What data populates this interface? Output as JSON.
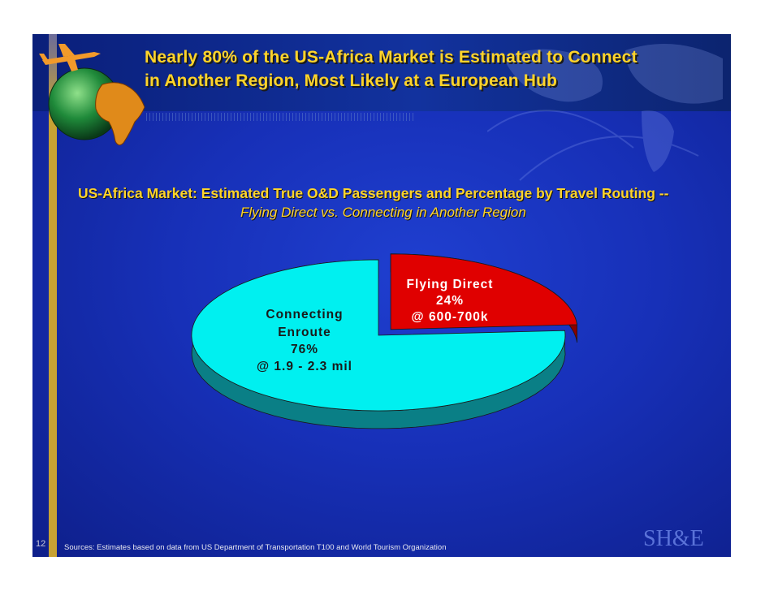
{
  "slide": {
    "title_lines": [
      "Nearly 80% of the US-Africa Market is Estimated to Connect",
      "in Another Region, Most Likely at a European Hub"
    ],
    "page_number": "12",
    "sources": "Sources:  Estimates based on data from US Department of Transportation T100 and World Tourism Organization",
    "logo_text": "SH&E"
  },
  "chart_data": {
    "type": "pie",
    "title": "US-Africa Market:  Estimated True O&D Passengers and Percentage by Travel Routing --",
    "subtitle": "Flying Direct vs. Connecting in Another Region",
    "slices": [
      {
        "label": "Flying Direct",
        "value": 24,
        "pct_label": "24%",
        "volume_label": "@ 600-700k",
        "color": "#e00000",
        "side_color": "#8a0000",
        "exploded": true
      },
      {
        "label": "Connecting Enroute",
        "label_lines": [
          "Connecting",
          "Enroute"
        ],
        "value": 76,
        "pct_label": "76%",
        "volume_label": "@ 1.9 - 2.3 mil",
        "color": "#00f0f0",
        "side_color": "#0a7f86",
        "exploded": false
      }
    ],
    "legend": "none",
    "label_colors": {
      "direct": "#ffffff",
      "connecting": "#1a1a1a"
    }
  },
  "colors": {
    "background": "#1730b8",
    "title": "#ffd42a",
    "accent_bar": "#c8a233"
  },
  "icons": [
    "airplane-icon",
    "globe-icon",
    "africa-map-icon",
    "world-map-graphic"
  ]
}
